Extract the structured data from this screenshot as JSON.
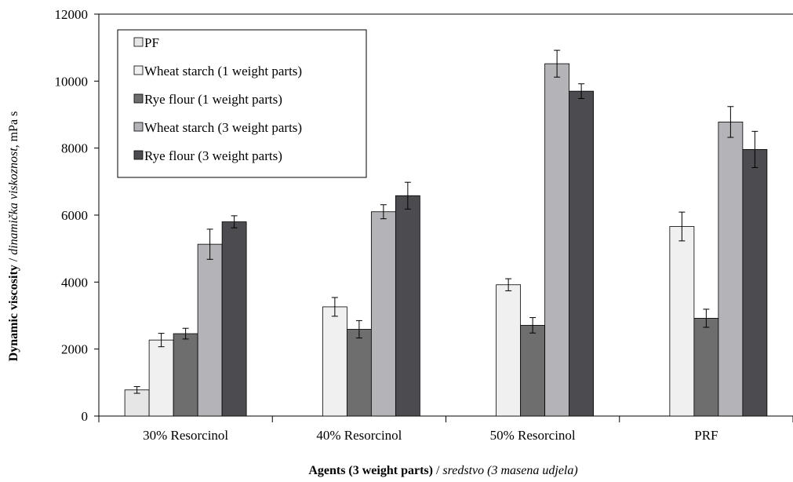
{
  "chart_data": {
    "type": "bar",
    "categories": [
      "30% Resorcinol",
      "40% Resorcinol",
      "50% Resorcinol",
      "PRF"
    ],
    "ylim": [
      0,
      12000
    ],
    "yticks": [
      0,
      2000,
      4000,
      6000,
      8000,
      10000,
      12000
    ],
    "ylabel": {
      "main": "Dynamic viscosity",
      "sep": " / ",
      "italic": "dinamička viskoznost,",
      "unit": " mPa s"
    },
    "xlabel": {
      "main": "Agents (3 weight parts)",
      "sep": " / ",
      "italic": "sredstvo (3 masena udjela)"
    },
    "legend_position": "top-left",
    "grid": false,
    "series": [
      {
        "name": "PF",
        "color": "#e6e6e6",
        "values": [
          780,
          null,
          null,
          null
        ],
        "errors": [
          100,
          null,
          null,
          null
        ]
      },
      {
        "name": "Wheat starch (1 weight parts)",
        "color": "#f0f0f0",
        "values": [
          2270,
          3260,
          3920,
          5660
        ],
        "errors": [
          200,
          280,
          180,
          430
        ]
      },
      {
        "name": "Rye flour (1 weight parts)",
        "color": "#6e6e6e",
        "values": [
          2460,
          2590,
          2710,
          2920
        ],
        "errors": [
          160,
          260,
          230,
          270
        ]
      },
      {
        "name": "Wheat starch (3 weight parts)",
        "color": "#b4b4b8",
        "values": [
          5130,
          6100,
          10520,
          8780
        ],
        "errors": [
          450,
          210,
          400,
          460
        ]
      },
      {
        "name": "Rye flour (3 weight parts)",
        "color": "#4c4c50",
        "values": [
          5800,
          6580,
          9700,
          7960
        ],
        "errors": [
          180,
          400,
          220,
          540
        ]
      }
    ]
  }
}
